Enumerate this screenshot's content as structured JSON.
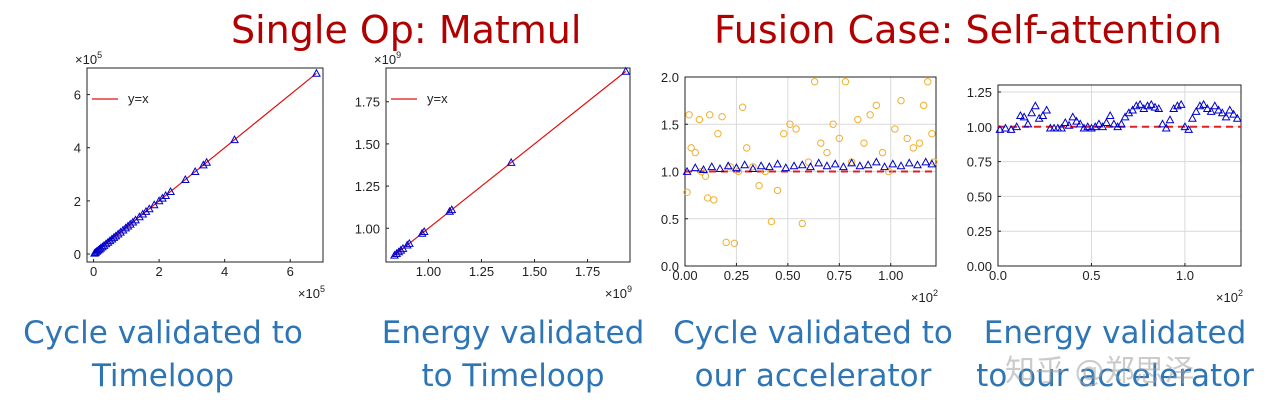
{
  "headings": {
    "left": "Single Op: Matmul",
    "right": "Fusion Case: Self-attention"
  },
  "captions": [
    {
      "line1": "Cycle validated to",
      "line2": "Timeloop"
    },
    {
      "line1": "Energy validated",
      "line2": "to Timeloop"
    },
    {
      "line1": "Cycle validated to",
      "line2": "our accelerator"
    },
    {
      "line1": "Energy validated",
      "line2": "to our accelerator"
    }
  ],
  "watermark": "知乎 @郑思泽",
  "colors": {
    "heading": "#b00000",
    "caption": "#2e75b6",
    "fit_line": "#e01010",
    "triangle": "#0000cc",
    "circle": "#f0b030",
    "ref_line": "#e02020"
  },
  "chart_data": [
    {
      "type": "scatter",
      "title": "Single Op: Matmul - Cycle",
      "x_multiplier": "×10",
      "x_exp": "5",
      "y_multiplier": "×10",
      "y_exp": "5",
      "xlim": [
        -0.2,
        7.0
      ],
      "ylim": [
        -0.3,
        7.0
      ],
      "xticks": [
        0,
        2,
        4,
        6
      ],
      "yticks": [
        0,
        2,
        4,
        6
      ],
      "legend": "y=x",
      "fit_line": [
        [
          0,
          0
        ],
        [
          6.8,
          6.8
        ]
      ],
      "points": [
        [
          0.03,
          0.03
        ],
        [
          0.06,
          0.06
        ],
        [
          0.1,
          0.1
        ],
        [
          0.14,
          0.14
        ],
        [
          0.18,
          0.18
        ],
        [
          0.22,
          0.22
        ],
        [
          0.27,
          0.27
        ],
        [
          0.32,
          0.32
        ],
        [
          0.38,
          0.38
        ],
        [
          0.44,
          0.44
        ],
        [
          0.5,
          0.5
        ],
        [
          0.56,
          0.56
        ],
        [
          0.62,
          0.62
        ],
        [
          0.68,
          0.68
        ],
        [
          0.75,
          0.75
        ],
        [
          0.82,
          0.82
        ],
        [
          0.9,
          0.9
        ],
        [
          0.98,
          0.98
        ],
        [
          1.05,
          1.05
        ],
        [
          1.12,
          1.12
        ],
        [
          1.2,
          1.2
        ],
        [
          1.28,
          1.28
        ],
        [
          1.4,
          1.4
        ],
        [
          1.5,
          1.5
        ],
        [
          1.6,
          1.6
        ],
        [
          1.7,
          1.7
        ],
        [
          1.85,
          1.85
        ],
        [
          2.0,
          2.0
        ],
        [
          2.1,
          2.1
        ],
        [
          2.2,
          2.2
        ],
        [
          2.35,
          2.35
        ],
        [
          2.8,
          2.8
        ],
        [
          3.1,
          3.1
        ],
        [
          3.35,
          3.35
        ],
        [
          3.45,
          3.45
        ],
        [
          4.3,
          4.3
        ],
        [
          6.8,
          6.8
        ]
      ]
    },
    {
      "type": "scatter",
      "title": "Single Op: Matmul - Energy",
      "x_multiplier": "×10",
      "x_exp": "9",
      "y_multiplier": "×10",
      "y_exp": "9",
      "xlim": [
        0.8,
        1.95
      ],
      "ylim": [
        0.8,
        1.95
      ],
      "xticks": [
        "1.00",
        "1.25",
        "1.50",
        "1.75"
      ],
      "yticks": [
        "1.00",
        "1.25",
        "1.50",
        "1.75"
      ],
      "xtick_values": [
        1.0,
        1.25,
        1.5,
        1.75
      ],
      "ytick_values": [
        1.0,
        1.25,
        1.5,
        1.75
      ],
      "legend": "y=x",
      "fit_line": [
        [
          0.83,
          0.83
        ],
        [
          1.93,
          1.93
        ]
      ],
      "points": [
        [
          0.84,
          0.84
        ],
        [
          0.85,
          0.85
        ],
        [
          0.86,
          0.86
        ],
        [
          0.87,
          0.87
        ],
        [
          0.88,
          0.88
        ],
        [
          0.9,
          0.9
        ],
        [
          0.91,
          0.91
        ],
        [
          0.97,
          0.97
        ],
        [
          0.98,
          0.98
        ],
        [
          1.1,
          1.1
        ],
        [
          1.11,
          1.11
        ],
        [
          1.39,
          1.39
        ],
        [
          1.93,
          1.93
        ]
      ]
    },
    {
      "type": "scatter",
      "title": "Fusion Case: Self-attention - Cycle",
      "x_multiplier": "×10",
      "x_exp": "2",
      "xlim": [
        0,
        1.22
      ],
      "ylim": [
        0,
        2.0
      ],
      "xticks": [
        "0.00",
        "0.25",
        "0.50",
        "0.75",
        "1.00"
      ],
      "yticks": [
        "0.0",
        "0.5",
        "1.0",
        "1.5",
        "2.0"
      ],
      "xtick_values": [
        0,
        0.25,
        0.5,
        0.75,
        1.0
      ],
      "ytick_values": [
        0,
        0.5,
        1.0,
        1.5,
        2.0
      ],
      "ref_line": 1.0,
      "series": [
        {
          "name": "circles",
          "marker": "circle",
          "points": [
            [
              0.01,
              0.78
            ],
            [
              0.02,
              1.6
            ],
            [
              0.03,
              1.25
            ],
            [
              0.05,
              1.2
            ],
            [
              0.07,
              1.55
            ],
            [
              0.08,
              1.0
            ],
            [
              0.1,
              0.95
            ],
            [
              0.11,
              0.72
            ],
            [
              0.12,
              1.6
            ],
            [
              0.14,
              0.7
            ],
            [
              0.16,
              1.4
            ],
            [
              0.18,
              1.58
            ],
            [
              0.2,
              0.25
            ],
            [
              0.22,
              1.05
            ],
            [
              0.24,
              0.24
            ],
            [
              0.26,
              1.0
            ],
            [
              0.28,
              1.68
            ],
            [
              0.3,
              1.25
            ],
            [
              0.33,
              1.05
            ],
            [
              0.36,
              0.85
            ],
            [
              0.39,
              1.0
            ],
            [
              0.42,
              0.47
            ],
            [
              0.45,
              0.8
            ],
            [
              0.48,
              1.4
            ],
            [
              0.51,
              1.5
            ],
            [
              0.54,
              1.45
            ],
            [
              0.57,
              0.45
            ],
            [
              0.6,
              1.1
            ],
            [
              0.63,
              1.95
            ],
            [
              0.66,
              1.3
            ],
            [
              0.69,
              1.2
            ],
            [
              0.72,
              1.5
            ],
            [
              0.75,
              1.35
            ],
            [
              0.78,
              1.95
            ],
            [
              0.81,
              1.1
            ],
            [
              0.84,
              1.55
            ],
            [
              0.87,
              1.3
            ],
            [
              0.9,
              1.6
            ],
            [
              0.93,
              1.7
            ],
            [
              0.96,
              1.2
            ],
            [
              0.99,
              1.0
            ],
            [
              1.02,
              1.45
            ],
            [
              1.05,
              1.75
            ],
            [
              1.08,
              1.35
            ],
            [
              1.11,
              1.25
            ],
            [
              1.14,
              1.3
            ],
            [
              1.16,
              1.7
            ],
            [
              1.18,
              1.95
            ],
            [
              1.2,
              1.4
            ],
            [
              1.21,
              1.1
            ]
          ]
        },
        {
          "name": "triangles",
          "marker": "triangle",
          "points": [
            [
              0.01,
              1.0
            ],
            [
              0.05,
              1.04
            ],
            [
              0.09,
              1.02
            ],
            [
              0.13,
              1.05
            ],
            [
              0.17,
              1.03
            ],
            [
              0.21,
              1.06
            ],
            [
              0.25,
              1.04
            ],
            [
              0.29,
              1.07
            ],
            [
              0.33,
              1.03
            ],
            [
              0.37,
              1.06
            ],
            [
              0.41,
              1.05
            ],
            [
              0.45,
              1.08
            ],
            [
              0.49,
              1.04
            ],
            [
              0.53,
              1.06
            ],
            [
              0.57,
              1.07
            ],
            [
              0.61,
              1.05
            ],
            [
              0.65,
              1.09
            ],
            [
              0.69,
              1.06
            ],
            [
              0.73,
              1.08
            ],
            [
              0.77,
              1.05
            ],
            [
              0.81,
              1.09
            ],
            [
              0.85,
              1.06
            ],
            [
              0.89,
              1.07
            ],
            [
              0.93,
              1.1
            ],
            [
              0.97,
              1.05
            ],
            [
              1.01,
              1.08
            ],
            [
              1.05,
              1.06
            ],
            [
              1.09,
              1.09
            ],
            [
              1.13,
              1.07
            ],
            [
              1.17,
              1.1
            ],
            [
              1.2,
              1.08
            ]
          ]
        }
      ]
    },
    {
      "type": "scatter",
      "title": "Fusion Case: Self-attention - Energy",
      "x_multiplier": "×10",
      "x_exp": "2",
      "xlim": [
        0,
        1.3
      ],
      "ylim": [
        0,
        1.3
      ],
      "xticks": [
        "0.0",
        "0.5",
        "1.0"
      ],
      "yticks": [
        "0.00",
        "0.25",
        "0.50",
        "0.75",
        "1.00",
        "1.25"
      ],
      "xtick_values": [
        0,
        0.5,
        1.0
      ],
      "ytick_values": [
        0,
        0.25,
        0.5,
        0.75,
        1.0,
        1.25
      ],
      "ref_line": 1.0,
      "series": [
        {
          "name": "triangles",
          "marker": "triangle",
          "points": [
            [
              0.01,
              0.98
            ],
            [
              0.04,
              0.99
            ],
            [
              0.07,
              0.98
            ],
            [
              0.1,
              1.0
            ],
            [
              0.12,
              1.08
            ],
            [
              0.14,
              1.07
            ],
            [
              0.16,
              1.02
            ],
            [
              0.18,
              1.1
            ],
            [
              0.2,
              1.15
            ],
            [
              0.22,
              1.06
            ],
            [
              0.24,
              1.08
            ],
            [
              0.26,
              1.12
            ],
            [
              0.28,
              0.99
            ],
            [
              0.3,
              0.99
            ],
            [
              0.32,
              0.99
            ],
            [
              0.34,
              0.99
            ],
            [
              0.36,
              1.03
            ],
            [
              0.38,
              1.01
            ],
            [
              0.4,
              1.07
            ],
            [
              0.42,
              1.04
            ],
            [
              0.44,
              1.02
            ],
            [
              0.46,
              0.99
            ],
            [
              0.48,
              1.0
            ],
            [
              0.5,
              0.99
            ],
            [
              0.52,
              1.0
            ],
            [
              0.54,
              1.02
            ],
            [
              0.56,
              1.0
            ],
            [
              0.58,
              1.03
            ],
            [
              0.6,
              1.08
            ],
            [
              0.62,
              1.02
            ],
            [
              0.64,
              1.0
            ],
            [
              0.66,
              1.02
            ],
            [
              0.68,
              1.07
            ],
            [
              0.7,
              1.1
            ],
            [
              0.72,
              1.12
            ],
            [
              0.74,
              1.15
            ],
            [
              0.76,
              1.16
            ],
            [
              0.78,
              1.13
            ],
            [
              0.8,
              1.15
            ],
            [
              0.82,
              1.16
            ],
            [
              0.84,
              1.14
            ],
            [
              0.86,
              1.13
            ],
            [
              0.88,
              1.02
            ],
            [
              0.9,
              0.99
            ],
            [
              0.92,
              1.05
            ],
            [
              0.94,
              1.13
            ],
            [
              0.96,
              1.15
            ],
            [
              0.98,
              1.16
            ],
            [
              1.0,
              1.0
            ],
            [
              1.02,
              0.98
            ],
            [
              1.04,
              1.06
            ],
            [
              1.06,
              1.11
            ],
            [
              1.08,
              1.15
            ],
            [
              1.1,
              1.16
            ],
            [
              1.12,
              1.13
            ],
            [
              1.14,
              1.11
            ],
            [
              1.16,
              1.15
            ],
            [
              1.18,
              1.12
            ],
            [
              1.2,
              1.1
            ],
            [
              1.22,
              1.07
            ],
            [
              1.24,
              1.12
            ],
            [
              1.26,
              1.09
            ],
            [
              1.28,
              1.06
            ]
          ]
        }
      ]
    }
  ]
}
